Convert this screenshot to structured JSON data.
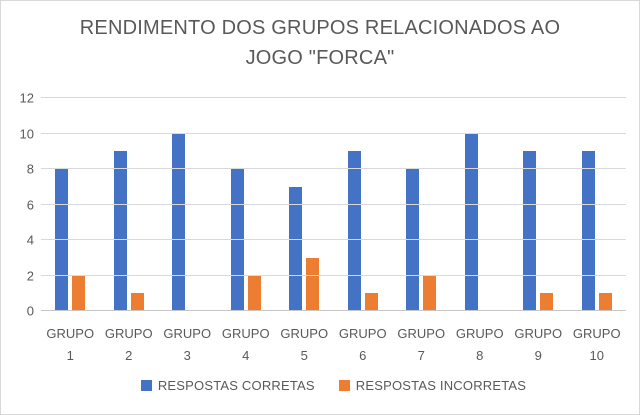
{
  "frame": {
    "background": "#FFFFFF",
    "border_color": "#D9D9D9"
  },
  "chart_data": {
    "type": "bar",
    "title": "RENDIMENTO DOS GRUPOS RELACIONADOS AO JOGO \"FORCA\"",
    "title_lines": [
      "RENDIMENTO DOS GRUPOS RELACIONADOS AO",
      "JOGO \"FORCA\""
    ],
    "categories": [
      "GRUPO 1",
      "GRUPO 2",
      "GRUPO 3",
      "GRUPO 4",
      "GRUPO 5",
      "GRUPO 6",
      "GRUPO 7",
      "GRUPO 8",
      "GRUPO 9",
      "GRUPO 10"
    ],
    "series": [
      {
        "name": "RESPOSTAS CORRETAS",
        "color": "#4472C4",
        "values": [
          8,
          9,
          10,
          8,
          7,
          9,
          8,
          10,
          9,
          9
        ]
      },
      {
        "name": "RESPOSTAS INCORRETAS",
        "color": "#ED7D31",
        "values": [
          2,
          1,
          0,
          2,
          3,
          1,
          2,
          0,
          1,
          1
        ]
      }
    ],
    "ylim": [
      0,
      12
    ],
    "yticks": [
      0,
      2,
      4,
      6,
      8,
      10,
      12
    ],
    "grid": true,
    "legend_position": "bottom",
    "text_color": "#595959",
    "gridline_color": "#D9D9D9",
    "axis_line_color": "#C6C6C6"
  }
}
